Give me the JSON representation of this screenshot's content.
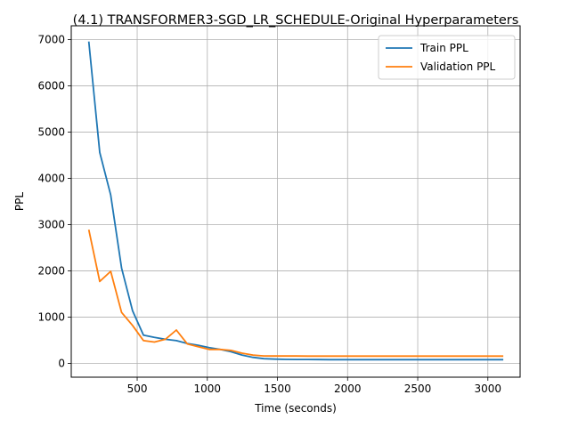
{
  "chart_data": {
    "type": "line",
    "title": "(4.1) TRANSFORMER3-SGD_LR_SCHEDULE-Original Hyperparameters",
    "xlabel": "Time (seconds)",
    "ylabel": "PPL",
    "xlim": [
      30,
      3230
    ],
    "ylim": [
      -300,
      7300
    ],
    "xticks": [
      500,
      1000,
      1500,
      2000,
      2500,
      3000
    ],
    "yticks": [
      0,
      1000,
      2000,
      3000,
      4000,
      5000,
      6000,
      7000
    ],
    "grid": true,
    "legend_position": "top-right",
    "series": [
      {
        "name": "Train PPL",
        "color": "#1f77b4",
        "x": [
          155,
          233,
          311,
          389,
          467,
          545,
          623,
          701,
          779,
          857,
          935,
          1013,
          1091,
          1169,
          1247,
          1325,
          1403,
          1481,
          1559,
          1637,
          1715,
          1793,
          1871,
          1949,
          2027,
          2105,
          2183,
          2261,
          2339,
          2417,
          2495,
          2573,
          2651,
          2729,
          2807,
          2885,
          2963,
          3041,
          3110
        ],
        "y": [
          6960,
          4560,
          3640,
          2060,
          1140,
          610,
          560,
          520,
          490,
          430,
          390,
          340,
          300,
          250,
          180,
          130,
          100,
          90,
          85,
          83,
          82,
          81,
          80,
          80,
          80,
          80,
          80,
          80,
          80,
          80,
          80,
          80,
          80,
          80,
          80,
          80,
          80,
          80,
          80
        ]
      },
      {
        "name": "Validation PPL",
        "color": "#ff7f0e",
        "x": [
          155,
          233,
          311,
          389,
          467,
          545,
          623,
          701,
          779,
          857,
          935,
          1013,
          1091,
          1169,
          1247,
          1325,
          1403,
          1481,
          1559,
          1637,
          1715,
          1793,
          1871,
          1949,
          2027,
          2105,
          2183,
          2261,
          2339,
          2417,
          2495,
          2573,
          2651,
          2729,
          2807,
          2885,
          2963,
          3041,
          3110
        ],
        "y": [
          2890,
          1770,
          1990,
          1100,
          820,
          490,
          460,
          520,
          720,
          420,
          360,
          300,
          300,
          280,
          220,
          180,
          160,
          158,
          157,
          157,
          156,
          156,
          156,
          156,
          156,
          156,
          156,
          156,
          156,
          156,
          156,
          156,
          156,
          156,
          156,
          156,
          156,
          156,
          156
        ]
      }
    ]
  }
}
